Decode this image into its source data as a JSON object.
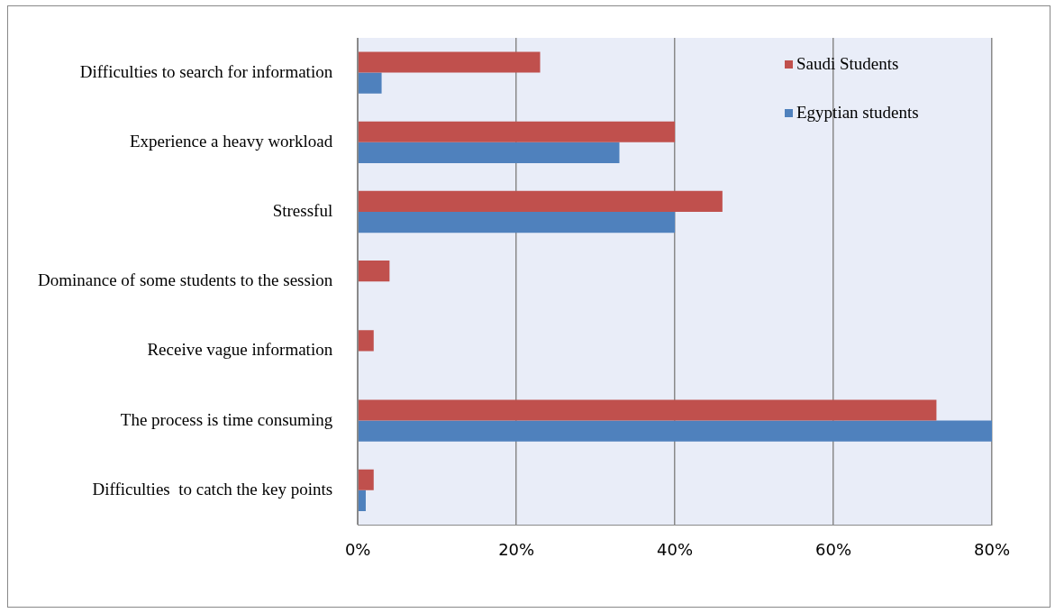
{
  "chart_data": {
    "type": "bar",
    "orientation": "horizontal",
    "categories": [
      "Difficulties to search for information",
      "Experience a heavy workload",
      "Stressful",
      "Dominance of some students to the session",
      "Receive vague information",
      "The process is time consuming",
      "Difficulties  to catch the key points"
    ],
    "series": [
      {
        "name": "Saudi Students",
        "color": "#c0504d",
        "values": [
          23,
          40,
          46,
          4,
          2,
          73,
          2
        ]
      },
      {
        "name": "Egyptian students",
        "color": "#4f81bd",
        "values": [
          3,
          33,
          40,
          0,
          0,
          80,
          1
        ]
      }
    ],
    "xlim": [
      0,
      80
    ],
    "xticks": [
      {
        "value": 0,
        "label": "0%"
      },
      {
        "value": 20,
        "label": "20%"
      },
      {
        "value": 40,
        "label": "40%"
      },
      {
        "value": 60,
        "label": "60%"
      },
      {
        "value": 80,
        "label": "80%"
      }
    ],
    "grid": "x",
    "legend": "top right"
  }
}
